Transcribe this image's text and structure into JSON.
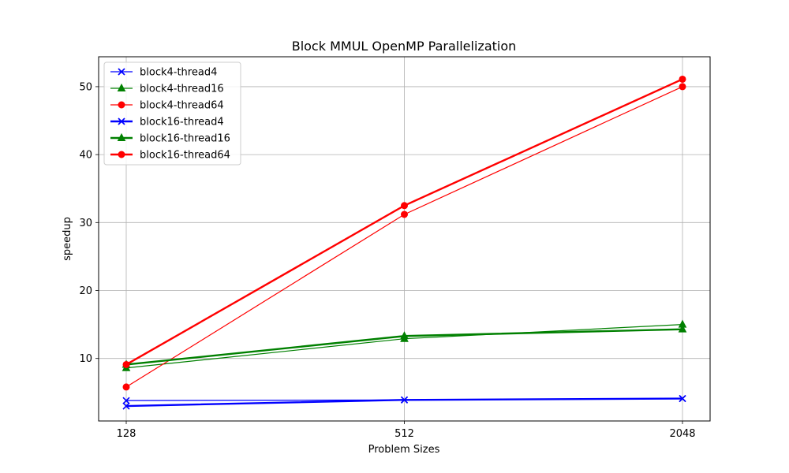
{
  "chart_data": {
    "type": "line",
    "title": "Block MMUL OpenMP Parallelization",
    "xlabel": "Problem Sizes",
    "ylabel": "speedup",
    "categories": [
      "128",
      "512",
      "2048"
    ],
    "ylim": [
      0.8,
      54.4
    ],
    "yticks": [
      10,
      20,
      30,
      40,
      50
    ],
    "grid": true,
    "legend_position": "top-left",
    "series": [
      {
        "name": "block4-thread4",
        "values": [
          3.8,
          3.9,
          4.1
        ],
        "color": "#0000ff",
        "marker": "x",
        "linewidth": "thin"
      },
      {
        "name": "block4-thread16",
        "values": [
          8.6,
          12.9,
          15.0
        ],
        "color": "#008000",
        "marker": "triangle",
        "linewidth": "thin"
      },
      {
        "name": "block4-thread64",
        "values": [
          5.8,
          31.2,
          50.0
        ],
        "color": "#ff0000",
        "marker": "circle",
        "linewidth": "thin"
      },
      {
        "name": "block16-thread4",
        "values": [
          3.0,
          3.9,
          4.1
        ],
        "color": "#0000ff",
        "marker": "x",
        "linewidth": "thick"
      },
      {
        "name": "block16-thread16",
        "values": [
          9.1,
          13.3,
          14.3
        ],
        "color": "#008000",
        "marker": "triangle",
        "linewidth": "thick"
      },
      {
        "name": "block16-thread64",
        "values": [
          9.1,
          32.5,
          51.1
        ],
        "color": "#ff0000",
        "marker": "circle",
        "linewidth": "thick"
      }
    ]
  }
}
